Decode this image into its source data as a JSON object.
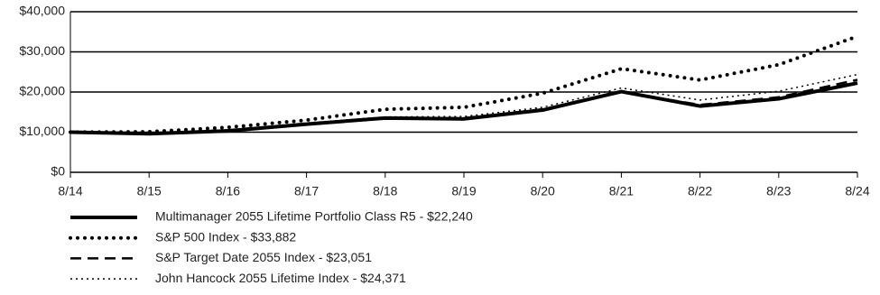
{
  "chart_data": {
    "type": "line",
    "categories": [
      "8/14",
      "8/15",
      "8/16",
      "8/17",
      "8/18",
      "8/19",
      "8/20",
      "8/21",
      "8/22",
      "8/23",
      "8/24"
    ],
    "series": [
      {
        "name": "Multimanager 2055 Lifetime Portfolio Class R5 - $22,240",
        "color": "#000000",
        "line_style": "solid",
        "values": [
          10000,
          9600,
          10300,
          12000,
          13500,
          13300,
          15500,
          20100,
          16500,
          18300,
          22240
        ]
      },
      {
        "name": "S&P 500 Index - $33,882",
        "color": "#000000",
        "line_style": "dotted",
        "values": [
          10000,
          10100,
          11200,
          13000,
          15700,
          16200,
          19700,
          25800,
          23000,
          26800,
          33882
        ]
      },
      {
        "name": "S&P Target Date 2055 Index - $23,051",
        "color": "#000000",
        "line_style": "dashed",
        "values": [
          10000,
          9700,
          10500,
          12100,
          13600,
          13500,
          15700,
          20000,
          16800,
          18700,
          23051
        ]
      },
      {
        "name": "John Hancock 2055 Lifetime Index - $24,371",
        "color": "#000000",
        "line_style": "fine-dotted",
        "values": [
          10000,
          9800,
          10600,
          12300,
          13800,
          13900,
          16200,
          21000,
          18000,
          20200,
          24371
        ]
      }
    ],
    "ylim": [
      0,
      40000
    ],
    "yticks": [
      {
        "value": 0,
        "label": "$0"
      },
      {
        "value": 10000,
        "label": "$10,000"
      },
      {
        "value": 20000,
        "label": "$20,000"
      },
      {
        "value": 30000,
        "label": "$30,000"
      },
      {
        "value": 40000,
        "label": "$40,000"
      }
    ],
    "grid": true
  }
}
